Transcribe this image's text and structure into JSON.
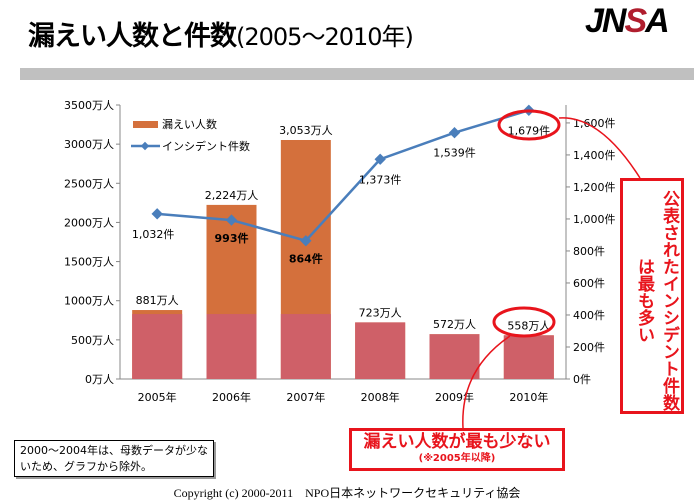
{
  "header": {
    "title": "漏えい人数と件数",
    "subtitle": "(2005～2010年)",
    "logo": "JNSA"
  },
  "chart_data": {
    "type": "bar+line",
    "categories": [
      "2005年",
      "2006年",
      "2007年",
      "2008年",
      "2009年",
      "2010年"
    ],
    "series": [
      {
        "name": "漏えい人数",
        "type": "bar",
        "axis": "left",
        "values": [
          881,
          2224,
          3053,
          723,
          572,
          558
        ],
        "labels": [
          "881万人",
          "2,224万人",
          "3,053万人",
          "723万人",
          "572万人",
          "558万人"
        ],
        "color": "#d4703c",
        "base_color": "#cf6068"
      },
      {
        "name": "インシデント件数",
        "type": "line",
        "axis": "right",
        "values": [
          1032,
          993,
          864,
          1373,
          1539,
          1679
        ],
        "labels": [
          "1,032件",
          "993件",
          "864件",
          "1,373件",
          "1,539件",
          "1,679件"
        ],
        "color": "#4a7ebb"
      }
    ],
    "left_axis": {
      "ylim": [
        0,
        3500
      ],
      "ticks": [
        "0万人",
        "500万人",
        "1000万人",
        "1500万人",
        "2000万人",
        "2500万人",
        "3000万人",
        "3500万人"
      ]
    },
    "right_axis": {
      "ylim": [
        0,
        1712
      ],
      "ticks": [
        "0件",
        "200件",
        "400件",
        "600件",
        "800件",
        "1,000件",
        "1,200件",
        "1,400件",
        "1,600件"
      ]
    },
    "legend_placement": "top-left"
  },
  "callouts": {
    "right": "公表されたインシデント件数は最も多い",
    "bottom": "漏えい人数が最も少ない",
    "bottom_note": "(※2005年以降)"
  },
  "note": "2000～2004年は、母数データが少ないため、グラフから除外。",
  "footer": "Copyright (c) 2000-2011　NPO日本ネットワークセキュリティ協会"
}
